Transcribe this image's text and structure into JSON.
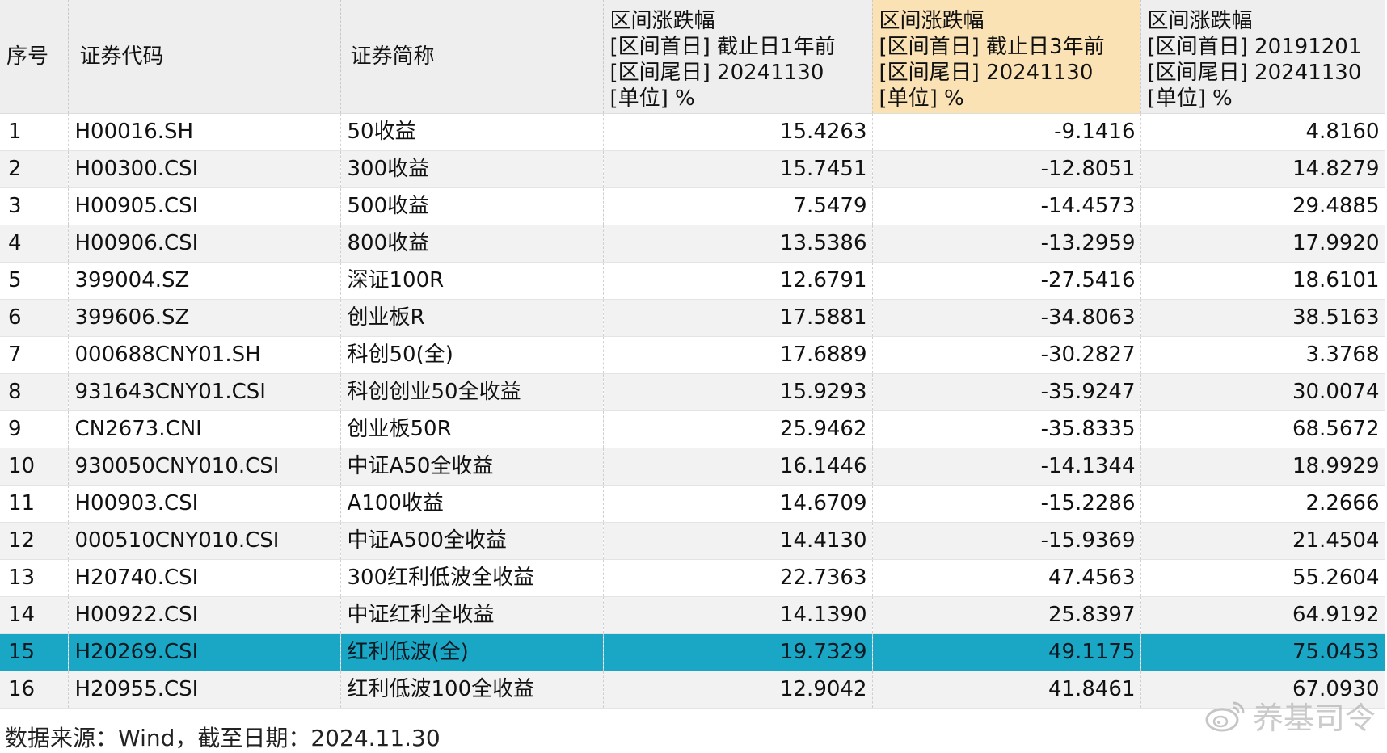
{
  "table": {
    "headers": {
      "seq": "序号",
      "code": "证券代码",
      "name": "证券简称",
      "col1": [
        "区间涨跌幅",
        "[区间首日] 截止日1年前",
        "[区间尾日] 20241130",
        "[单位] %"
      ],
      "col2": [
        "区间涨跌幅",
        "[区间首日] 截止日3年前",
        "[区间尾日] 20241130",
        "[单位] %"
      ],
      "col3": [
        "区间涨跌幅",
        "[区间首日] 20191201",
        "[区间尾日] 20241130",
        "[单位] %"
      ]
    },
    "rows": [
      {
        "seq": "1",
        "code": "H00016.SH",
        "name": "50收益",
        "r1": "15.4263",
        "r3": "-9.1416",
        "r5": "4.8160"
      },
      {
        "seq": "2",
        "code": "H00300.CSI",
        "name": "300收益",
        "r1": "15.7451",
        "r3": "-12.8051",
        "r5": "14.8279"
      },
      {
        "seq": "3",
        "code": "H00905.CSI",
        "name": "500收益",
        "r1": "7.5479",
        "r3": "-14.4573",
        "r5": "29.4885"
      },
      {
        "seq": "4",
        "code": "H00906.CSI",
        "name": "800收益",
        "r1": "13.5386",
        "r3": "-13.2959",
        "r5": "17.9920"
      },
      {
        "seq": "5",
        "code": "399004.SZ",
        "name": "深证100R",
        "r1": "12.6791",
        "r3": "-27.5416",
        "r5": "18.6101"
      },
      {
        "seq": "6",
        "code": "399606.SZ",
        "name": "创业板R",
        "r1": "17.5881",
        "r3": "-34.8063",
        "r5": "38.5163"
      },
      {
        "seq": "7",
        "code": "000688CNY01.SH",
        "name": "科创50(全)",
        "r1": "17.6889",
        "r3": "-30.2827",
        "r5": "3.3768"
      },
      {
        "seq": "8",
        "code": "931643CNY01.CSI",
        "name": "科创创业50全收益",
        "r1": "15.9293",
        "r3": "-35.9247",
        "r5": "30.0074"
      },
      {
        "seq": "9",
        "code": "CN2673.CNI",
        "name": "创业板50R",
        "r1": "25.9462",
        "r3": "-35.8335",
        "r5": "68.5672"
      },
      {
        "seq": "10",
        "code": "930050CNY010.CSI",
        "name": "中证A50全收益",
        "r1": "16.1446",
        "r3": "-14.1344",
        "r5": "18.9929"
      },
      {
        "seq": "11",
        "code": "H00903.CSI",
        "name": "A100收益",
        "r1": "14.6709",
        "r3": "-15.2286",
        "r5": "2.2666"
      },
      {
        "seq": "12",
        "code": "000510CNY010.CSI",
        "name": "中证A500全收益",
        "r1": "14.4130",
        "r3": "-15.9369",
        "r5": "21.4504"
      },
      {
        "seq": "13",
        "code": "H20740.CSI",
        "name": "300红利低波全收益",
        "r1": "22.7363",
        "r3": "47.4563",
        "r5": "55.2604"
      },
      {
        "seq": "14",
        "code": "H00922.CSI",
        "name": "中证红利全收益",
        "r1": "14.1390",
        "r3": "25.8397",
        "r5": "64.9192"
      },
      {
        "seq": "15",
        "code": "H20269.CSI",
        "name": "红利低波(全)",
        "r1": "19.7329",
        "r3": "49.1175",
        "r5": "75.0453"
      },
      {
        "seq": "16",
        "code": "H20955.CSI",
        "name": "红利低波100全收益",
        "r1": "12.9042",
        "r3": "41.8461",
        "r5": "67.0930"
      }
    ],
    "selected_row_index": 14,
    "highlight_column": "col2",
    "colors": {
      "header_bg": "#eeeeee",
      "header_highlight_bg": "#fbe2b4",
      "selected_row_bg": "#1aa7c6",
      "stripe_bg": "#f2f2f2"
    }
  },
  "footer": {
    "source_text": "数据来源：Wind，截至日期：2024.11.30"
  },
  "watermark": {
    "text": "养基司令",
    "icon": "weibo-logo-icon"
  }
}
